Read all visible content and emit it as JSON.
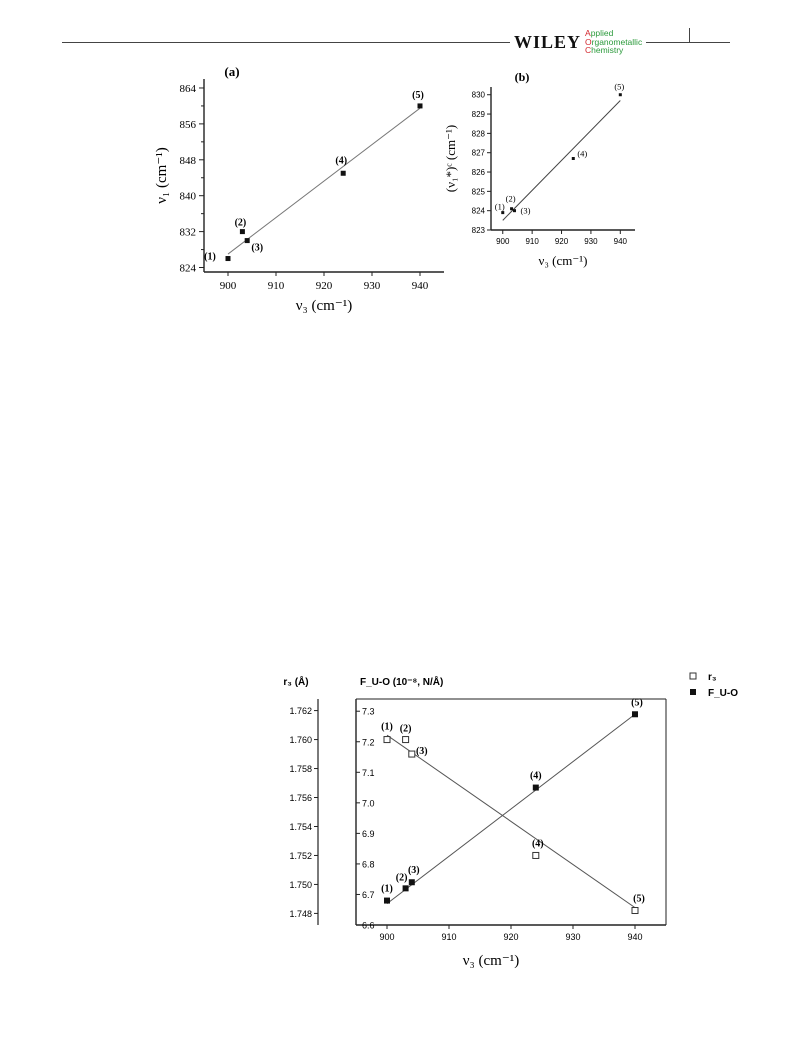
{
  "header": {
    "publisher": "WILEY",
    "journal_lines": [
      {
        "first": "A",
        "rest": "pplied"
      },
      {
        "first": "O",
        "rest": "rganometallic"
      },
      {
        "first": "C",
        "rest": "hemistry"
      }
    ]
  },
  "chart_data": [
    {
      "id": "a",
      "type": "scatter",
      "panel_label": "(a)",
      "xlabel": "ν₃ (cm⁻¹)",
      "ylabel": "ν₁ (cm⁻¹)",
      "xlim": [
        895,
        945
      ],
      "ylim": [
        823,
        866
      ],
      "xticks": [
        900,
        910,
        920,
        930,
        940
      ],
      "yticks": [
        824,
        832,
        840,
        848,
        856,
        864
      ],
      "grid": false,
      "points": [
        {
          "label": "(1)",
          "x": 900,
          "y": 826
        },
        {
          "label": "(2)",
          "x": 903,
          "y": 832
        },
        {
          "label": "(3)",
          "x": 904,
          "y": 830
        },
        {
          "label": "(4)",
          "x": 924,
          "y": 845
        },
        {
          "label": "(5)",
          "x": 940,
          "y": 860
        }
      ],
      "fit_line": [
        [
          900,
          827
        ],
        [
          940,
          859.5
        ]
      ]
    },
    {
      "id": "b",
      "type": "scatter",
      "panel_label": "(b)",
      "xlabel": "ν₃ (cm⁻¹)",
      "ylabel": "(ν₁*)ᶜ (cm⁻¹)",
      "xlim": [
        896,
        945
      ],
      "ylim": [
        823,
        830.4
      ],
      "xticks": [
        900,
        910,
        920,
        930,
        940
      ],
      "yticks": [
        823,
        824,
        825,
        826,
        827,
        828,
        829,
        830
      ],
      "grid": false,
      "points": [
        {
          "label": "(1)",
          "x": 900,
          "y": 823.9
        },
        {
          "label": "(2)",
          "x": 903,
          "y": 824.1
        },
        {
          "label": "(3)",
          "x": 904,
          "y": 824.0
        },
        {
          "label": "(4)",
          "x": 924,
          "y": 826.7
        },
        {
          "label": "(5)",
          "x": 940,
          "y": 830.0
        }
      ],
      "fit_line": [
        [
          900,
          823.5
        ],
        [
          940,
          829.7
        ]
      ]
    },
    {
      "id": "c",
      "type": "scatter",
      "xlabel": "ν₃ (cm⁻¹)",
      "ylabel_left": "r₃ (Å)",
      "ylabel_right": "F_U-O (10⁻⁸, N/Å)",
      "xlim": [
        895,
        945
      ],
      "ylim_left": [
        1.7472,
        1.7628
      ],
      "ylim_right": [
        6.6,
        7.34
      ],
      "xticks": [
        900,
        910,
        920,
        930,
        940
      ],
      "yticks_left": [
        "1.748",
        "1.750",
        "1.752",
        "1.754",
        "1.756",
        "1.758",
        "1.760",
        "1.762"
      ],
      "yticks_right": [
        "6.6",
        "6.7",
        "6.8",
        "6.9",
        "7.0",
        "7.1",
        "7.2",
        "7.3"
      ],
      "grid": false,
      "legend_position": "top-right",
      "series": [
        {
          "name": "r₃",
          "marker": "open-square",
          "axis": "left",
          "points": [
            {
              "label": "(1)",
              "x": 900,
              "y": 1.76
            },
            {
              "label": "(2)",
              "x": 903,
              "y": 1.76
            },
            {
              "label": "(3)",
              "x": 904,
              "y": 1.759
            },
            {
              "label": "(4)",
              "x": 924,
              "y": 1.752
            },
            {
              "label": "(5)",
              "x": 940,
              "y": 1.7482
            }
          ],
          "fit_line": [
            [
              900,
              1.7603
            ],
            [
              940,
              1.7484
            ]
          ]
        },
        {
          "name": "F_U-O",
          "marker": "filled-square",
          "axis": "right",
          "points": [
            {
              "label": "(1)",
              "x": 900,
              "y": 6.68
            },
            {
              "label": "(2)",
              "x": 903,
              "y": 6.72
            },
            {
              "label": "(3)",
              "x": 904,
              "y": 6.74
            },
            {
              "label": "(4)",
              "x": 924,
              "y": 7.05
            },
            {
              "label": "(5)",
              "x": 940,
              "y": 7.29
            }
          ],
          "fit_line": [
            [
              900,
              6.67
            ],
            [
              940,
              7.29
            ]
          ]
        }
      ]
    }
  ]
}
